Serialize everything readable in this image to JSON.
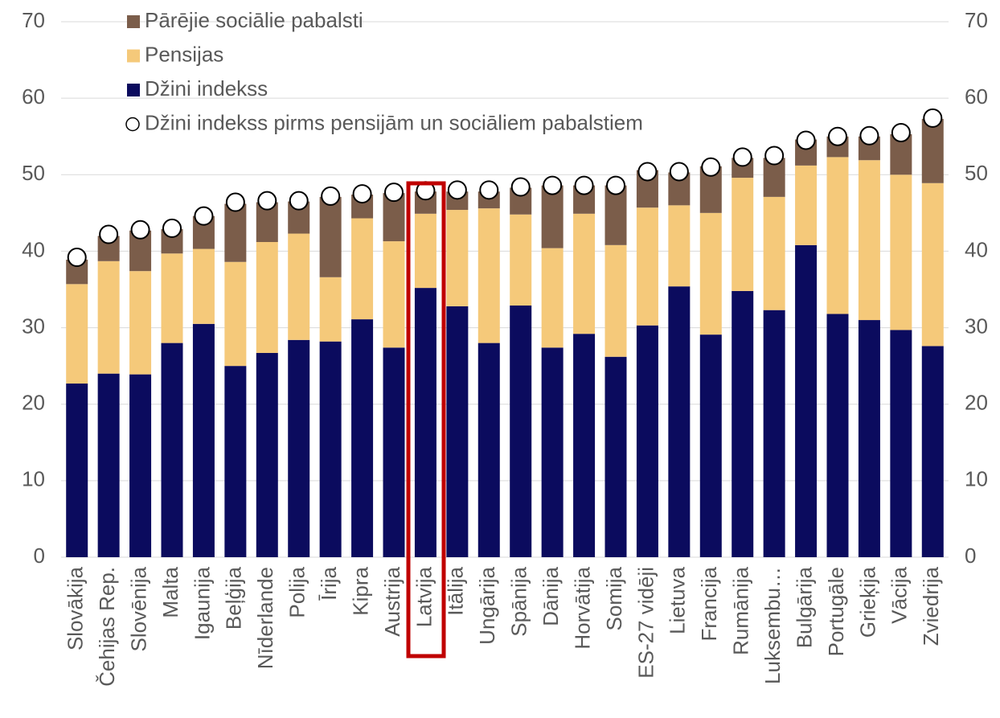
{
  "chart_data": {
    "type": "bar",
    "stacked": true,
    "categories": [
      "Slovākija",
      "Čehijas Rep.",
      "Slovēnija",
      "Malta",
      "Igaunija",
      "Beļģija",
      "Nīderlande",
      "Polija",
      "Īrija",
      "Kipra",
      "Austrija",
      "Latvija",
      "Itālija",
      "Ungārija",
      "Spānija",
      "Dānija",
      "Horvātija",
      "Somija",
      "ES-27 vidēji",
      "Lietuva",
      "Francija",
      "Rumānija",
      "Luksembu…",
      "Bulgārija",
      "Portugāle",
      "Grieķija",
      "Vācija",
      "Zviedrija"
    ],
    "series": [
      {
        "name": "Džini indekss",
        "color": "#0b0b5e",
        "values": [
          22.7,
          24.0,
          23.9,
          28.0,
          30.5,
          25.0,
          26.7,
          28.4,
          28.2,
          31.1,
          27.4,
          35.2,
          32.8,
          28.0,
          32.9,
          27.4,
          29.2,
          26.2,
          30.3,
          35.4,
          29.1,
          34.8,
          32.3,
          40.8,
          31.8,
          31.0,
          29.7,
          27.6
        ]
      },
      {
        "name": "Pensijas",
        "color": "#f5c97a",
        "values": [
          13.0,
          14.7,
          13.5,
          11.7,
          9.8,
          13.6,
          14.5,
          13.9,
          8.4,
          13.2,
          13.9,
          9.7,
          12.6,
          17.6,
          11.9,
          13.0,
          15.7,
          14.6,
          15.4,
          10.6,
          15.9,
          14.8,
          14.8,
          10.4,
          20.5,
          20.9,
          20.3,
          21.3
        ]
      },
      {
        "name": "Pārējie sociālie pabalsti",
        "color": "#7b5d4a",
        "values": [
          3.2,
          3.3,
          5.3,
          3.2,
          4.3,
          7.6,
          5.2,
          4.2,
          10.5,
          3.1,
          6.3,
          2.9,
          2.4,
          2.2,
          3.5,
          8.2,
          3.7,
          7.8,
          4.9,
          4.3,
          6.1,
          2.6,
          5.1,
          3.4,
          2.7,
          3.1,
          5.3,
          8.4
        ]
      },
      {
        "name": "Džini indekss pirms pensijām un sociāliem pabalstiem",
        "color": "#ffffff",
        "marker": "circle",
        "values": [
          39.2,
          42.2,
          42.8,
          43.0,
          44.6,
          46.4,
          46.6,
          46.6,
          47.2,
          47.5,
          47.7,
          47.9,
          48.0,
          48.0,
          48.4,
          48.6,
          48.6,
          48.6,
          50.4,
          50.4,
          51.0,
          52.3,
          52.5,
          54.5,
          55.0,
          55.1,
          55.5,
          57.4
        ]
      }
    ],
    "ylim": [
      0,
      70
    ],
    "yticks": [
      0,
      10,
      20,
      30,
      40,
      50,
      60,
      70
    ],
    "y2lim": [
      0,
      70
    ],
    "y2ticks": [
      0,
      10,
      20,
      30,
      40,
      50,
      60,
      70
    ],
    "grid": true,
    "legend": "top-left"
  }
}
